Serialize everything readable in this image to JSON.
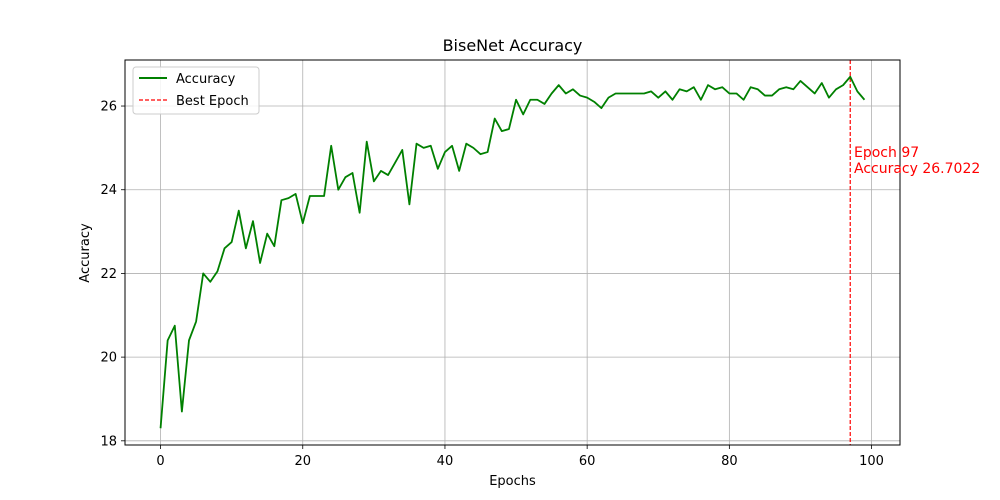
{
  "chart_data": {
    "type": "line",
    "title": "BiseNet Accuracy",
    "xlabel": "Epochs",
    "ylabel": "Accuracy",
    "xlim": [
      -5,
      104
    ],
    "ylim": [
      17.9,
      27.1
    ],
    "xticks": [
      0,
      20,
      40,
      60,
      80,
      100
    ],
    "yticks": [
      18,
      20,
      22,
      24,
      26
    ],
    "grid": true,
    "legend_position": "upper-left",
    "series": [
      {
        "name": "Accuracy",
        "color": "#008000",
        "x": [
          0,
          1,
          2,
          3,
          4,
          5,
          6,
          7,
          8,
          9,
          10,
          11,
          12,
          13,
          14,
          15,
          16,
          17,
          18,
          19,
          20,
          21,
          22,
          23,
          24,
          25,
          26,
          27,
          28,
          29,
          30,
          31,
          32,
          33,
          34,
          35,
          36,
          37,
          38,
          39,
          40,
          41,
          42,
          43,
          44,
          45,
          46,
          47,
          48,
          49,
          50,
          51,
          52,
          53,
          54,
          55,
          56,
          57,
          58,
          59,
          60,
          61,
          62,
          63,
          64,
          65,
          66,
          67,
          68,
          69,
          70,
          71,
          72,
          73,
          74,
          75,
          76,
          77,
          78,
          79,
          80,
          81,
          82,
          83,
          84,
          85,
          86,
          87,
          88,
          89,
          90,
          91,
          92,
          93,
          94,
          95,
          96,
          97,
          98,
          99
        ],
        "y": [
          18.3,
          20.4,
          20.75,
          18.7,
          20.4,
          20.85,
          22.0,
          21.8,
          22.05,
          22.6,
          22.75,
          23.5,
          22.6,
          23.25,
          22.25,
          22.95,
          22.65,
          23.75,
          23.8,
          23.9,
          23.2,
          23.85,
          23.85,
          23.85,
          25.05,
          24.0,
          24.3,
          24.4,
          23.45,
          25.15,
          24.2,
          24.45,
          24.35,
          24.65,
          24.95,
          23.65,
          25.1,
          25.0,
          25.05,
          24.5,
          24.9,
          25.05,
          24.45,
          25.1,
          25.0,
          24.85,
          24.9,
          25.7,
          25.4,
          25.45,
          26.15,
          25.8,
          26.15,
          26.15,
          26.05,
          26.3,
          26.5,
          26.3,
          26.4,
          26.25,
          26.2,
          26.1,
          25.95,
          26.2,
          26.3,
          26.3,
          26.3,
          26.3,
          26.3,
          26.35,
          26.2,
          26.35,
          26.15,
          26.4,
          26.35,
          26.45,
          26.15,
          26.5,
          26.4,
          26.45,
          26.3,
          26.3,
          26.15,
          26.45,
          26.4,
          26.25,
          26.25,
          26.4,
          26.45,
          26.4,
          26.6,
          26.45,
          26.3,
          26.55,
          26.2,
          26.4,
          26.5,
          26.7,
          26.35,
          26.15
        ]
      }
    ],
    "vline": {
      "name": "Best Epoch",
      "x": 97,
      "color": "#ff0000",
      "style": "dashed"
    },
    "annotation": {
      "line1": "Epoch 97",
      "line2": "Accuracy 26.7022",
      "color": "#ff0000"
    }
  }
}
